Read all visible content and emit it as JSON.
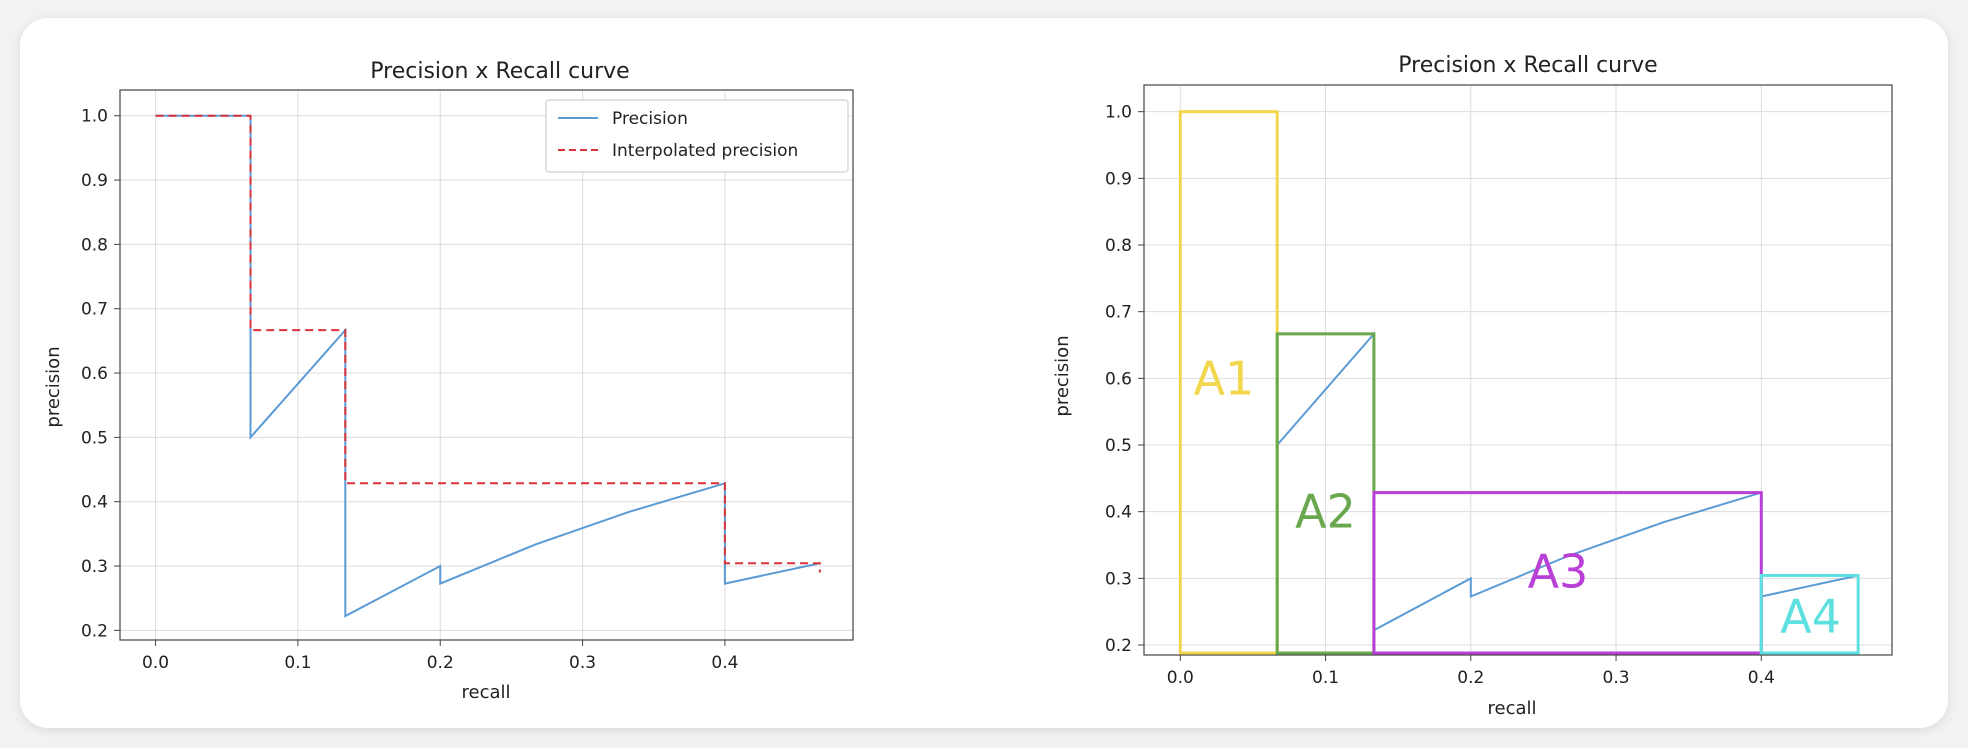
{
  "chart_data": [
    {
      "type": "line",
      "title": "Precision x Recall curve",
      "xlabel": "recall",
      "ylabel": "precision",
      "xlim": [
        -0.025,
        0.49
      ],
      "ylim": [
        0.185,
        1.04
      ],
      "xticks": [
        0.0,
        0.1,
        0.2,
        0.3,
        0.4
      ],
      "xtick_labels": [
        "0.0",
        "0.1",
        "0.2",
        "0.3",
        "0.4"
      ],
      "yticks": [
        0.2,
        0.3,
        0.4,
        0.5,
        0.6,
        0.7,
        0.8,
        0.9,
        1.0
      ],
      "ytick_labels": [
        "0.2",
        "0.3",
        "0.4",
        "0.5",
        "0.6",
        "0.7",
        "0.8",
        "0.9",
        "1.0"
      ],
      "grid": true,
      "legend": "top-right",
      "series": [
        {
          "name": "Precision",
          "style": "solid",
          "color": "#5b9bd5",
          "x": [
            0.0,
            0.0667,
            0.0667,
            0.1333,
            0.1333,
            0.1333,
            0.2,
            0.2,
            0.2667,
            0.3333,
            0.4,
            0.4,
            0.4667
          ],
          "y": [
            1.0,
            1.0,
            0.5,
            0.6667,
            0.4286,
            0.2222,
            0.3,
            0.2727,
            0.3333,
            0.3846,
            0.4286,
            0.2727,
            0.3043
          ]
        },
        {
          "name": "Interpolated precision",
          "style": "dashed",
          "color": "#d9323a",
          "x": [
            0.0,
            0.0667,
            0.0667,
            0.1333,
            0.1333,
            0.4,
            0.4,
            0.4667,
            0.4667
          ],
          "y": [
            1.0,
            1.0,
            0.6667,
            0.6667,
            0.4286,
            0.4286,
            0.3043,
            0.3043,
            0.29
          ]
        }
      ]
    },
    {
      "type": "line",
      "title": "Precision x Recall curve",
      "xlabel": "recall",
      "ylabel": "precision",
      "xlim": [
        -0.025,
        0.49
      ],
      "ylim": [
        0.185,
        1.04
      ],
      "xticks": [
        0.0,
        0.1,
        0.2,
        0.3,
        0.4
      ],
      "xtick_labels": [
        "0.0",
        "0.1",
        "0.2",
        "0.3",
        "0.4"
      ],
      "yticks": [
        0.2,
        0.3,
        0.4,
        0.5,
        0.6,
        0.7,
        0.8,
        0.9,
        1.0
      ],
      "ytick_labels": [
        "0.2",
        "0.3",
        "0.4",
        "0.5",
        "0.6",
        "0.7",
        "0.8",
        "0.9",
        "1.0"
      ],
      "grid": true,
      "series": [
        {
          "style": "solid",
          "color": "#5b9bd5",
          "x": [
            0.0667,
            0.0667,
            0.1333,
            0.1333,
            0.2,
            0.2,
            0.2667,
            0.3333,
            0.4,
            0.4,
            0.4667
          ],
          "y": [
            1.0,
            0.5,
            0.6667,
            0.2222,
            0.3,
            0.2727,
            0.3333,
            0.3846,
            0.4286,
            0.2727,
            0.3043
          ]
        }
      ],
      "areas": [
        {
          "label": "A1",
          "color": "#f2d64b",
          "x0": 0.0,
          "x1": 0.0667,
          "y0": 0.188,
          "y1": 1.0,
          "label_x": 0.03,
          "label_y": 0.6
        },
        {
          "label": "A2",
          "color": "#6aa84f",
          "x0": 0.0667,
          "x1": 0.1333,
          "y0": 0.188,
          "y1": 0.6667,
          "label_x": 0.1,
          "label_y": 0.4
        },
        {
          "label": "A3",
          "color": "#b940d6",
          "x0": 0.1333,
          "x1": 0.4,
          "y0": 0.188,
          "y1": 0.4286,
          "label_x": 0.26,
          "label_y": 0.31
        },
        {
          "label": "A4",
          "color": "#5fe0e0",
          "x0": 0.4,
          "x1": 0.4667,
          "y0": 0.188,
          "y1": 0.3043,
          "label_x": 0.434,
          "label_y": 0.243
        }
      ]
    }
  ]
}
